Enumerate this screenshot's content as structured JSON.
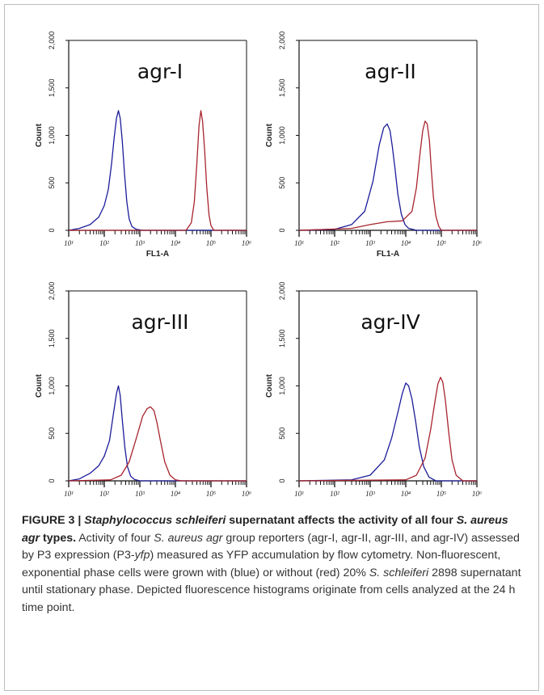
{
  "chart_data": [
    {
      "type": "line",
      "title": "agr-I",
      "xlabel": "FL1-A",
      "ylabel": "Count",
      "xscale": "log",
      "xlim": [
        10,
        1000000
      ],
      "ylim": [
        0,
        2000
      ],
      "ytick_labels": [
        "0",
        "500",
        "1,000",
        "1,500",
        "2,000"
      ],
      "xtick_labels": [
        "10^1",
        "10^2",
        "10^3",
        "10^4",
        "10^5",
        "10^6"
      ],
      "series": [
        {
          "color": "#1c1c9a",
          "x": [
            10,
            20,
            40,
            70,
            100,
            130,
            160,
            190,
            220,
            250,
            280,
            320,
            370,
            430,
            500,
            600,
            800,
            1200,
            1000000
          ],
          "y": [
            0,
            20,
            60,
            140,
            260,
            430,
            700,
            980,
            1180,
            1260,
            1180,
            950,
            600,
            300,
            120,
            40,
            10,
            0,
            0
          ]
        },
        {
          "color": "#a8242e",
          "x": [
            10,
            20000,
            28000,
            34000,
            40000,
            46000,
            52000,
            58000,
            66000,
            76000,
            88000,
            100000,
            120000,
            1000000
          ],
          "y": [
            0,
            0,
            80,
            300,
            700,
            1100,
            1260,
            1150,
            850,
            450,
            160,
            50,
            0,
            0
          ]
        }
      ]
    },
    {
      "type": "line",
      "title": "agr-II",
      "xlabel": "FL1-A",
      "ylabel": "Count",
      "xscale": "log",
      "xlim": [
        10,
        1000000
      ],
      "ylim": [
        0,
        2000
      ],
      "ytick_labels": [
        "0",
        "500",
        "1,000",
        "1,500",
        "2,000"
      ],
      "xtick_labels": [
        "10^1",
        "10^2",
        "10^3",
        "10^4",
        "10^5",
        "10^6"
      ],
      "series": [
        {
          "color": "#1c1c9a",
          "x": [
            10,
            100,
            300,
            700,
            1200,
            1800,
            2400,
            3000,
            3600,
            4200,
            5000,
            6000,
            7500,
            9500,
            12000,
            20000,
            1000000
          ],
          "y": [
            0,
            10,
            60,
            200,
            520,
            900,
            1080,
            1120,
            1050,
            880,
            640,
            380,
            170,
            60,
            20,
            0,
            0
          ]
        },
        {
          "color": "#a8242e",
          "x": [
            10,
            300,
            1000,
            3000,
            8000,
            15000,
            20000,
            25000,
            30000,
            35000,
            40000,
            46000,
            52000,
            60000,
            70000,
            85000,
            100000,
            1000000
          ],
          "y": [
            0,
            20,
            60,
            90,
            100,
            200,
            450,
            800,
            1050,
            1150,
            1120,
            950,
            650,
            350,
            150,
            40,
            0,
            0
          ]
        }
      ]
    },
    {
      "type": "line",
      "title": "agr-III",
      "xlabel": "FL1-A",
      "ylabel": "Count",
      "xscale": "log",
      "xlim": [
        10,
        1000000
      ],
      "ylim": [
        0,
        2000
      ],
      "ytick_labels": [
        "0",
        "500",
        "1,000",
        "1,500",
        "2,000"
      ],
      "xtick_labels": [
        "10^1",
        "10^2",
        "10^3",
        "10^4",
        "10^5",
        "10^6"
      ],
      "series": [
        {
          "color": "#1c1c9a",
          "x": [
            10,
            20,
            40,
            70,
            100,
            140,
            180,
            220,
            250,
            280,
            320,
            380,
            450,
            550,
            700,
            1000,
            1000000
          ],
          "y": [
            0,
            20,
            80,
            160,
            260,
            420,
            700,
            920,
            1000,
            900,
            650,
            350,
            150,
            50,
            15,
            0,
            0
          ]
        },
        {
          "color": "#a8242e",
          "x": [
            10,
            150,
            300,
            500,
            800,
            1200,
            1600,
            2000,
            2500,
            3000,
            3800,
            5000,
            7000,
            10000,
            15000,
            1000000
          ],
          "y": [
            0,
            10,
            60,
            200,
            450,
            680,
            760,
            780,
            740,
            620,
            420,
            200,
            60,
            10,
            0,
            0
          ]
        }
      ]
    },
    {
      "type": "line",
      "title": "agr-IV",
      "xlabel": "FL1-A",
      "ylabel": "Count",
      "xscale": "log",
      "xlim": [
        10,
        1000000
      ],
      "ylim": [
        0,
        2000
      ],
      "ytick_labels": [
        "0",
        "500",
        "1,000",
        "1,500",
        "2,000"
      ],
      "xtick_labels": [
        "10^1",
        "10^2",
        "10^3",
        "10^4",
        "10^5",
        "10^6"
      ],
      "series": [
        {
          "color": "#1c1c9a",
          "x": [
            10,
            300,
            1000,
            2500,
            4000,
            6000,
            8000,
            10000,
            12000,
            15000,
            19000,
            24000,
            32000,
            45000,
            70000,
            1000000
          ],
          "y": [
            0,
            10,
            60,
            220,
            450,
            720,
            920,
            1030,
            1000,
            860,
            620,
            360,
            150,
            40,
            0,
            0
          ]
        },
        {
          "color": "#a8242e",
          "x": [
            10,
            10000,
            20000,
            35000,
            50000,
            65000,
            80000,
            95000,
            110000,
            130000,
            160000,
            200000,
            260000,
            400000,
            1000000
          ],
          "y": [
            0,
            10,
            60,
            240,
            540,
            820,
            1020,
            1090,
            1040,
            850,
            520,
            220,
            60,
            0,
            0
          ]
        }
      ]
    }
  ],
  "caption": {
    "figure_label": "FIGURE 3 |",
    "title_italic": "Staphylococcus schleiferi",
    "title_rest_1": "supernatant affects the activity of all four",
    "title_italic_2": "S. aureus agr",
    "title_rest_2": "types.",
    "body_1": "Activity of four",
    "body_italic_1": "S. aureus agr",
    "body_2": "group reporters (agr-I, agr-II, agr-III, and agr-IV) assessed by P3 expression (P3-",
    "body_italic_2": "yfp",
    "body_3": ") measured as YFP accumulation by flow cytometry. Non-fluorescent, exponential phase cells were grown with (blue) or without (red) 20%",
    "body_italic_3": "S. schleiferi",
    "body_4": "2898 supernatant until stationary phase. Depicted fluorescence histograms originate from cells analyzed at the 24 h time point."
  }
}
